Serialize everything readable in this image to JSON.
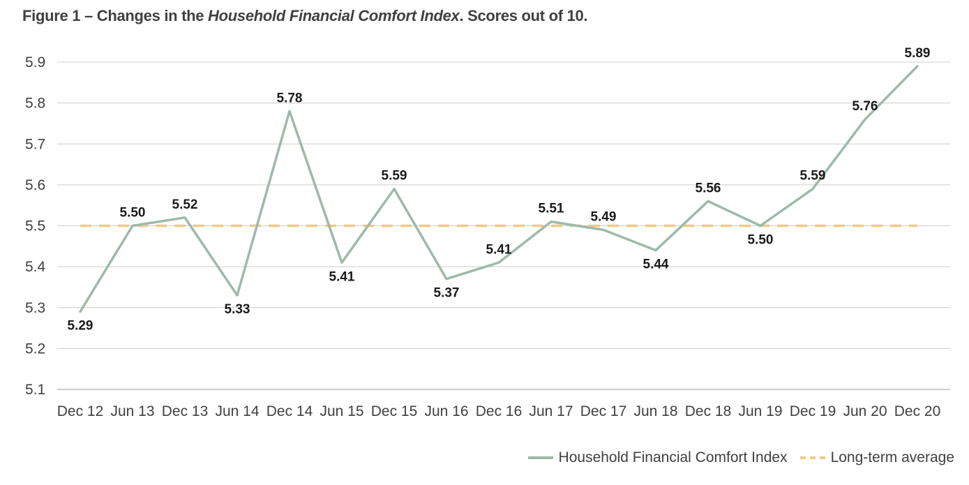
{
  "title": {
    "prefix": "Figure 1 – Changes in the ",
    "italic": "Household Financial Comfort Index",
    "suffix": ". Scores out of 10."
  },
  "colors": {
    "index_line": "#9dbaa9",
    "average_line": "#f0c98a",
    "gridline": "#cccccc",
    "axis": "#999999"
  },
  "chart_data": {
    "type": "line",
    "categories": [
      "Dec 12",
      "Jun 13",
      "Dec 13",
      "Jun 14",
      "Dec 14",
      "Jun 15",
      "Dec 15",
      "Jun 16",
      "Dec 16",
      "Jun 17",
      "Dec 17",
      "Jun 18",
      "Dec 18",
      "Jun 19",
      "Dec 19",
      "Jun 20",
      "Dec 20"
    ],
    "series": [
      {
        "name": "Household Financial Comfort Index",
        "values": [
          5.29,
          5.5,
          5.52,
          5.33,
          5.78,
          5.41,
          5.59,
          5.37,
          5.41,
          5.51,
          5.49,
          5.44,
          5.56,
          5.5,
          5.59,
          5.76,
          5.89
        ],
        "labels": [
          "5.29",
          "5.50",
          "5.52",
          "5.33",
          "5.78",
          "5.41",
          "5.59",
          "5.37",
          "5.41",
          "5.51",
          "5.49",
          "5.44",
          "5.56",
          "5.50",
          "5.59",
          "5.76",
          "5.89"
        ],
        "label_positions": [
          "below",
          "above",
          "above",
          "below",
          "above",
          "below",
          "above",
          "below",
          "above",
          "above",
          "above",
          "below",
          "above",
          "below",
          "above",
          "above",
          "above"
        ]
      },
      {
        "name": "Long-term average",
        "values": [
          5.5,
          5.5,
          5.5,
          5.5,
          5.5,
          5.5,
          5.5,
          5.5,
          5.5,
          5.5,
          5.5,
          5.5,
          5.5,
          5.5,
          5.5,
          5.5,
          5.5
        ],
        "style": "dashed"
      }
    ],
    "yticks": [
      "5.1",
      "5.2",
      "5.3",
      "5.4",
      "5.5",
      "5.6",
      "5.7",
      "5.8",
      "5.9"
    ],
    "ylim": [
      5.1,
      5.9
    ],
    "grid": true,
    "legend_position": "bottom-right"
  }
}
